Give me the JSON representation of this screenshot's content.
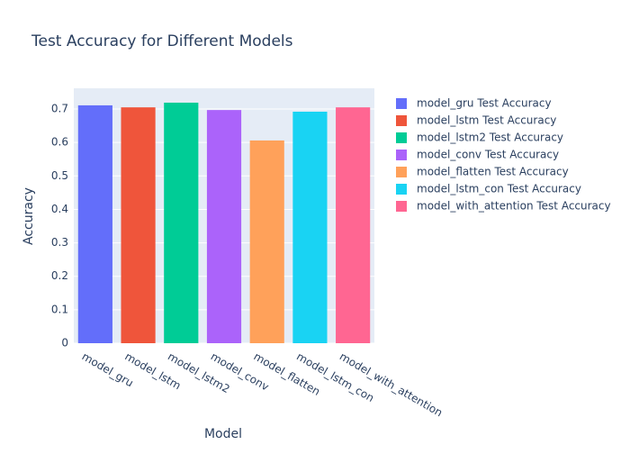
{
  "chart_data": {
    "type": "bar",
    "title": "Test Accuracy for Different Models",
    "x_label": "Model",
    "y_label": "Accuracy",
    "categories": [
      "model_gru",
      "model_lstm",
      "model_lstm2",
      "model_conv",
      "model_flatten",
      "model_lstm_con",
      "model_with_attention"
    ],
    "series": [
      {
        "name": "model_gru Test Accuracy",
        "color": "#636efa",
        "values": [
          0.711,
          null,
          null,
          null,
          null,
          null,
          null
        ]
      },
      {
        "name": "model_lstm Test Accuracy",
        "color": "#ef553b",
        "values": [
          null,
          0.705,
          null,
          null,
          null,
          null,
          null
        ]
      },
      {
        "name": "model_lstm2 Test Accuracy",
        "color": "#00cc96",
        "values": [
          null,
          null,
          0.719,
          null,
          null,
          null,
          null
        ]
      },
      {
        "name": "model_conv Test Accuracy",
        "color": "#ab63fa",
        "values": [
          null,
          null,
          null,
          0.697,
          null,
          null,
          null
        ]
      },
      {
        "name": "model_flatten Test Accuracy",
        "color": "#ffa15a",
        "values": [
          null,
          null,
          null,
          null,
          0.606,
          null,
          null
        ]
      },
      {
        "name": "model_lstm_con Test Accuracy",
        "color": "#19d3f3",
        "values": [
          null,
          null,
          null,
          null,
          null,
          0.692,
          null
        ]
      },
      {
        "name": "model_with_attention Test Accuracy",
        "color": "#ff6692",
        "values": [
          null,
          null,
          null,
          null,
          null,
          null,
          0.705
        ]
      }
    ],
    "ylim": [
      0,
      0.762
    ],
    "yticks": [
      0,
      0.1,
      0.2,
      0.3,
      0.4,
      0.5,
      0.6,
      0.7
    ],
    "grid": true,
    "legend": "right"
  }
}
